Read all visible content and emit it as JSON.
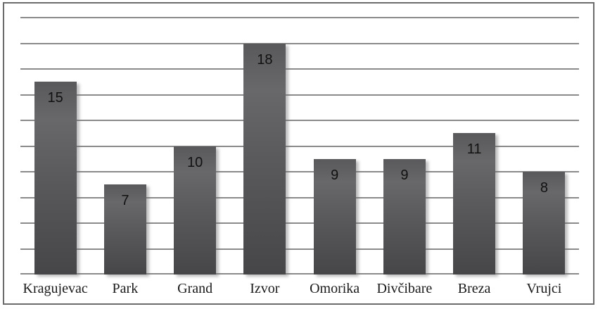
{
  "chart_data": {
    "type": "bar",
    "title": "",
    "categories": [
      "Kragujevac",
      "Park",
      "Grand",
      "Izvor",
      "Omorika",
      "Divčibare",
      "Breza",
      "Vrujci"
    ],
    "values": [
      15,
      7,
      10,
      18,
      9,
      9,
      11,
      8
    ],
    "xlabel": "",
    "ylabel": "",
    "ylim": [
      0,
      20
    ],
    "gridline_step": 2,
    "grid": "horizontal-only",
    "legend": "none",
    "y_axis_tick_labels_visible": false,
    "value_labels_position": "inside-end",
    "colors": {
      "bar_fill": "#58585a",
      "bar_gradient_bottom": "#464648",
      "gridline": "#8a8a8a",
      "frame_border": "#6b6b6b",
      "value_label": "#111111",
      "category_label": "#1a1a1a",
      "background": "#ffffff"
    }
  }
}
